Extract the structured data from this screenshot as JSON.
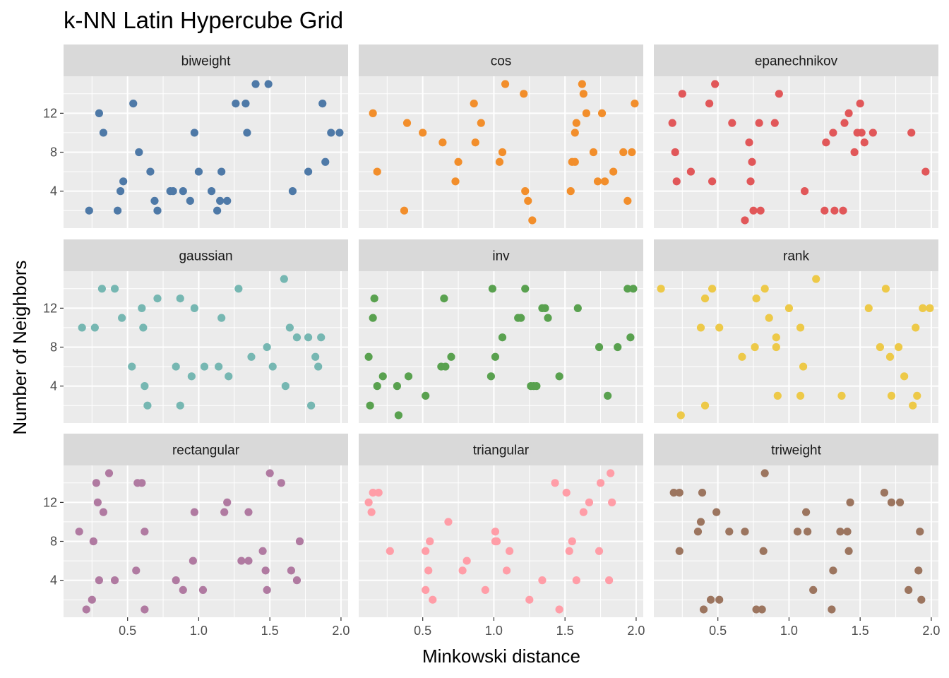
{
  "chart_data": {
    "type": "scatter",
    "title": "k-NN Latin Hypercube Grid",
    "xlabel": "Minkowski distance",
    "ylabel": "Number of Neighbors",
    "xlim": [
      0.05,
      2.05
    ],
    "ylim": [
      0.2,
      15.8
    ],
    "x_ticks": [
      {
        "value": 0.5,
        "label": "0.5"
      },
      {
        "value": 1.0,
        "label": "1.0"
      },
      {
        "value": 1.5,
        "label": "1.5"
      },
      {
        "value": 2.0,
        "label": "2.0"
      }
    ],
    "y_ticks": [
      {
        "value": 4,
        "label": "4"
      },
      {
        "value": 8,
        "label": "8"
      },
      {
        "value": 12,
        "label": "12"
      }
    ],
    "grid": true,
    "panel_background": "#EBEBEB",
    "strip_background": "#D9D9D9",
    "legend": "none",
    "panels": [
      {
        "name": "biweight",
        "color": "#4E79A7",
        "points": [
          [
            0.23,
            2
          ],
          [
            0.3,
            12
          ],
          [
            0.33,
            10
          ],
          [
            0.43,
            2
          ],
          [
            0.45,
            4
          ],
          [
            0.47,
            5
          ],
          [
            0.54,
            13
          ],
          [
            0.58,
            8
          ],
          [
            0.66,
            6
          ],
          [
            0.69,
            3
          ],
          [
            0.71,
            2
          ],
          [
            0.8,
            4
          ],
          [
            0.82,
            4
          ],
          [
            0.89,
            4
          ],
          [
            0.94,
            3
          ],
          [
            0.97,
            10
          ],
          [
            1.0,
            6
          ],
          [
            1.09,
            4
          ],
          [
            1.13,
            2
          ],
          [
            1.15,
            3
          ],
          [
            1.16,
            6
          ],
          [
            1.2,
            3
          ],
          [
            1.26,
            13
          ],
          [
            1.33,
            13
          ],
          [
            1.34,
            10
          ],
          [
            1.4,
            15
          ],
          [
            1.49,
            15
          ],
          [
            1.66,
            4
          ],
          [
            1.77,
            6
          ],
          [
            1.87,
            13
          ],
          [
            1.89,
            7
          ],
          [
            1.93,
            10
          ],
          [
            1.99,
            10
          ]
        ]
      },
      {
        "name": "cos",
        "color": "#F28E2B",
        "points": [
          [
            0.15,
            12
          ],
          [
            0.18,
            6
          ],
          [
            0.37,
            2
          ],
          [
            0.39,
            11
          ],
          [
            0.5,
            10
          ],
          [
            0.64,
            9
          ],
          [
            0.73,
            5
          ],
          [
            0.75,
            7
          ],
          [
            0.86,
            13
          ],
          [
            0.87,
            9
          ],
          [
            0.91,
            11
          ],
          [
            1.04,
            7
          ],
          [
            1.06,
            8
          ],
          [
            1.08,
            15
          ],
          [
            1.21,
            14
          ],
          [
            1.22,
            4
          ],
          [
            1.24,
            3
          ],
          [
            1.27,
            1
          ],
          [
            1.54,
            4
          ],
          [
            1.55,
            7
          ],
          [
            1.57,
            7
          ],
          [
            1.57,
            10
          ],
          [
            1.58,
            11
          ],
          [
            1.62,
            15
          ],
          [
            1.63,
            14
          ],
          [
            1.65,
            12
          ],
          [
            1.7,
            8
          ],
          [
            1.73,
            5
          ],
          [
            1.76,
            12
          ],
          [
            1.78,
            5
          ],
          [
            1.84,
            6
          ],
          [
            1.91,
            8
          ],
          [
            1.94,
            3
          ],
          [
            1.97,
            8
          ],
          [
            1.99,
            13
          ]
        ]
      },
      {
        "name": "epanechnikov",
        "color": "#E15759",
        "points": [
          [
            0.18,
            11
          ],
          [
            0.2,
            8
          ],
          [
            0.21,
            5
          ],
          [
            0.25,
            14
          ],
          [
            0.31,
            6
          ],
          [
            0.44,
            13
          ],
          [
            0.46,
            5
          ],
          [
            0.48,
            15
          ],
          [
            0.6,
            11
          ],
          [
            0.69,
            1
          ],
          [
            0.72,
            9
          ],
          [
            0.73,
            5
          ],
          [
            0.74,
            7
          ],
          [
            0.75,
            2
          ],
          [
            0.79,
            11
          ],
          [
            0.8,
            2
          ],
          [
            0.9,
            11
          ],
          [
            0.93,
            14
          ],
          [
            1.11,
            4
          ],
          [
            1.25,
            2
          ],
          [
            1.26,
            9
          ],
          [
            1.31,
            10
          ],
          [
            1.32,
            2
          ],
          [
            1.38,
            2
          ],
          [
            1.39,
            11
          ],
          [
            1.42,
            12
          ],
          [
            1.46,
            8
          ],
          [
            1.48,
            10
          ],
          [
            1.5,
            13
          ],
          [
            1.51,
            10
          ],
          [
            1.53,
            9
          ],
          [
            1.59,
            10
          ],
          [
            1.86,
            10
          ],
          [
            1.96,
            6
          ]
        ]
      },
      {
        "name": "gaussian",
        "color": "#76B7B2",
        "points": [
          [
            0.18,
            10
          ],
          [
            0.27,
            10
          ],
          [
            0.32,
            14
          ],
          [
            0.41,
            14
          ],
          [
            0.46,
            11
          ],
          [
            0.53,
            6
          ],
          [
            0.6,
            12
          ],
          [
            0.61,
            10
          ],
          [
            0.62,
            4
          ],
          [
            0.64,
            2
          ],
          [
            0.71,
            13
          ],
          [
            0.84,
            6
          ],
          [
            0.87,
            13
          ],
          [
            0.87,
            2
          ],
          [
            0.95,
            5
          ],
          [
            0.97,
            12
          ],
          [
            1.04,
            6
          ],
          [
            1.14,
            6
          ],
          [
            1.16,
            11
          ],
          [
            1.21,
            5
          ],
          [
            1.28,
            14
          ],
          [
            1.37,
            7
          ],
          [
            1.48,
            8
          ],
          [
            1.52,
            6
          ],
          [
            1.6,
            15
          ],
          [
            1.61,
            4
          ],
          [
            1.64,
            10
          ],
          [
            1.69,
            9
          ],
          [
            1.77,
            9
          ],
          [
            1.79,
            2
          ],
          [
            1.82,
            7
          ],
          [
            1.84,
            6
          ],
          [
            1.86,
            9
          ]
        ]
      },
      {
        "name": "inv",
        "color": "#59A14F",
        "points": [
          [
            0.12,
            7
          ],
          [
            0.13,
            2
          ],
          [
            0.15,
            11
          ],
          [
            0.16,
            13
          ],
          [
            0.18,
            4
          ],
          [
            0.22,
            5
          ],
          [
            0.32,
            4
          ],
          [
            0.33,
            1
          ],
          [
            0.4,
            5
          ],
          [
            0.52,
            3
          ],
          [
            0.63,
            6
          ],
          [
            0.65,
            13
          ],
          [
            0.66,
            6
          ],
          [
            0.7,
            7
          ],
          [
            0.98,
            5
          ],
          [
            0.99,
            14
          ],
          [
            1.01,
            7
          ],
          [
            1.06,
            9
          ],
          [
            1.17,
            11
          ],
          [
            1.19,
            11
          ],
          [
            1.22,
            14
          ],
          [
            1.26,
            4
          ],
          [
            1.28,
            4
          ],
          [
            1.3,
            4
          ],
          [
            1.34,
            12
          ],
          [
            1.36,
            12
          ],
          [
            1.38,
            11
          ],
          [
            1.46,
            5
          ],
          [
            1.59,
            12
          ],
          [
            1.74,
            8
          ],
          [
            1.8,
            3
          ],
          [
            1.87,
            8
          ],
          [
            1.94,
            14
          ],
          [
            1.96,
            9
          ],
          [
            1.98,
            14
          ]
        ]
      },
      {
        "name": "rank",
        "color": "#EDC948",
        "points": [
          [
            0.1,
            14
          ],
          [
            0.24,
            1
          ],
          [
            0.38,
            10
          ],
          [
            0.41,
            13
          ],
          [
            0.41,
            2
          ],
          [
            0.46,
            14
          ],
          [
            0.51,
            10
          ],
          [
            0.67,
            7
          ],
          [
            0.76,
            8
          ],
          [
            0.77,
            13
          ],
          [
            0.83,
            14
          ],
          [
            0.86,
            11
          ],
          [
            0.91,
            8
          ],
          [
            0.91,
            9
          ],
          [
            0.92,
            3
          ],
          [
            1.0,
            12
          ],
          [
            1.08,
            10
          ],
          [
            1.08,
            3
          ],
          [
            1.1,
            6
          ],
          [
            1.19,
            15
          ],
          [
            1.37,
            3
          ],
          [
            1.56,
            12
          ],
          [
            1.64,
            8
          ],
          [
            1.68,
            14
          ],
          [
            1.71,
            7
          ],
          [
            1.72,
            3
          ],
          [
            1.77,
            8
          ],
          [
            1.81,
            5
          ],
          [
            1.87,
            2
          ],
          [
            1.89,
            10
          ],
          [
            1.9,
            3
          ],
          [
            1.94,
            12
          ],
          [
            1.99,
            12
          ]
        ]
      },
      {
        "name": "rectangular",
        "color": "#B07AA1",
        "points": [
          [
            0.16,
            9
          ],
          [
            0.21,
            1
          ],
          [
            0.25,
            2
          ],
          [
            0.26,
            8
          ],
          [
            0.28,
            14
          ],
          [
            0.29,
            12
          ],
          [
            0.3,
            4
          ],
          [
            0.33,
            11
          ],
          [
            0.37,
            15
          ],
          [
            0.41,
            4
          ],
          [
            0.56,
            5
          ],
          [
            0.57,
            14
          ],
          [
            0.6,
            14
          ],
          [
            0.62,
            9
          ],
          [
            0.62,
            1
          ],
          [
            0.84,
            4
          ],
          [
            0.89,
            3
          ],
          [
            0.96,
            6
          ],
          [
            0.97,
            11
          ],
          [
            1.03,
            3
          ],
          [
            1.18,
            11
          ],
          [
            1.2,
            12
          ],
          [
            1.3,
            6
          ],
          [
            1.35,
            11
          ],
          [
            1.35,
            6
          ],
          [
            1.45,
            7
          ],
          [
            1.47,
            5
          ],
          [
            1.48,
            3
          ],
          [
            1.5,
            15
          ],
          [
            1.58,
            14
          ],
          [
            1.65,
            5
          ],
          [
            1.69,
            4
          ],
          [
            1.71,
            8
          ]
        ]
      },
      {
        "name": "triangular",
        "color": "#FF9DA7",
        "points": [
          [
            0.12,
            12
          ],
          [
            0.14,
            11
          ],
          [
            0.15,
            13
          ],
          [
            0.19,
            13
          ],
          [
            0.27,
            7
          ],
          [
            0.52,
            7
          ],
          [
            0.52,
            3
          ],
          [
            0.54,
            5
          ],
          [
            0.55,
            8
          ],
          [
            0.57,
            2
          ],
          [
            0.68,
            10
          ],
          [
            0.78,
            5
          ],
          [
            0.81,
            6
          ],
          [
            0.94,
            3
          ],
          [
            1.01,
            8
          ],
          [
            1.01,
            9
          ],
          [
            1.02,
            8
          ],
          [
            1.09,
            5
          ],
          [
            1.11,
            7
          ],
          [
            1.25,
            2
          ],
          [
            1.34,
            4
          ],
          [
            1.43,
            14
          ],
          [
            1.46,
            1
          ],
          [
            1.51,
            13
          ],
          [
            1.53,
            7
          ],
          [
            1.55,
            8
          ],
          [
            1.58,
            4
          ],
          [
            1.63,
            11
          ],
          [
            1.67,
            12
          ],
          [
            1.74,
            7
          ],
          [
            1.75,
            14
          ],
          [
            1.81,
            4
          ],
          [
            1.82,
            15
          ],
          [
            1.83,
            12
          ]
        ]
      },
      {
        "name": "triweight",
        "color": "#9C755F",
        "points": [
          [
            0.19,
            13
          ],
          [
            0.23,
            13
          ],
          [
            0.23,
            7
          ],
          [
            0.36,
            9
          ],
          [
            0.38,
            10
          ],
          [
            0.39,
            13
          ],
          [
            0.4,
            1
          ],
          [
            0.45,
            2
          ],
          [
            0.49,
            11
          ],
          [
            0.51,
            2
          ],
          [
            0.58,
            9
          ],
          [
            0.69,
            9
          ],
          [
            0.77,
            1
          ],
          [
            0.81,
            1
          ],
          [
            0.82,
            7
          ],
          [
            0.83,
            15
          ],
          [
            1.06,
            9
          ],
          [
            1.12,
            11
          ],
          [
            1.13,
            9
          ],
          [
            1.17,
            3
          ],
          [
            1.3,
            1
          ],
          [
            1.31,
            5
          ],
          [
            1.36,
            9
          ],
          [
            1.41,
            9
          ],
          [
            1.42,
            7
          ],
          [
            1.43,
            12
          ],
          [
            1.67,
            13
          ],
          [
            1.72,
            12
          ],
          [
            1.78,
            12
          ],
          [
            1.84,
            3
          ],
          [
            1.91,
            5
          ],
          [
            1.92,
            9
          ],
          [
            1.93,
            2
          ]
        ]
      }
    ]
  }
}
